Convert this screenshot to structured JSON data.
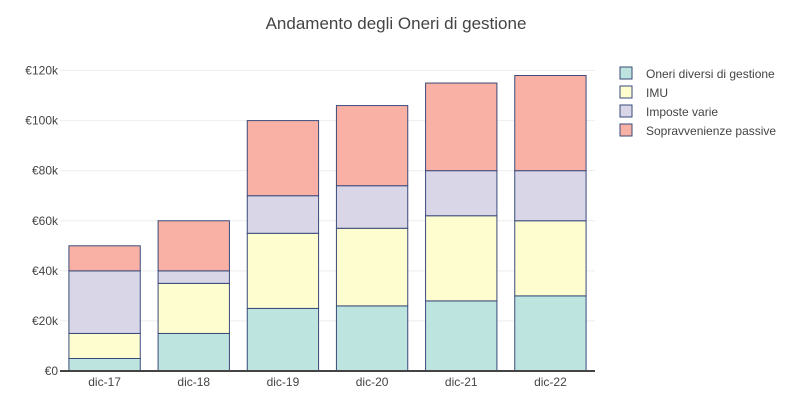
{
  "chart_data": {
    "type": "bar",
    "stacked": true,
    "title": "Andamento degli Oneri di gestione",
    "categories": [
      "dic-17",
      "dic-18",
      "dic-19",
      "dic-20",
      "dic-21",
      "dic-22"
    ],
    "series": [
      {
        "name": "Oneri diversi di gestione",
        "color": "#bde4df",
        "values": [
          5000,
          15000,
          25000,
          26000,
          28000,
          30000
        ]
      },
      {
        "name": "IMU",
        "color": "#fefdd0",
        "values": [
          10000,
          20000,
          30000,
          31000,
          34000,
          30000
        ]
      },
      {
        "name": "Imposte varie",
        "color": "#d9d6e8",
        "values": [
          25000,
          5000,
          15000,
          17000,
          18000,
          20000
        ]
      },
      {
        "name": "Sopravvenienze passive",
        "color": "#f9b1a6",
        "values": [
          10000,
          20000,
          30000,
          32000,
          35000,
          38000
        ]
      }
    ],
    "y_ticks": [
      0,
      20000,
      40000,
      60000,
      80000,
      100000,
      120000
    ],
    "y_tick_labels": [
      "€0",
      "€20k",
      "€40k",
      "€60k",
      "€80k",
      "€100k",
      "€120k"
    ],
    "ylim": [
      0,
      125000
    ],
    "bar_outline_color": "#3a4a7a",
    "grid": true,
    "legend_position": "right"
  }
}
